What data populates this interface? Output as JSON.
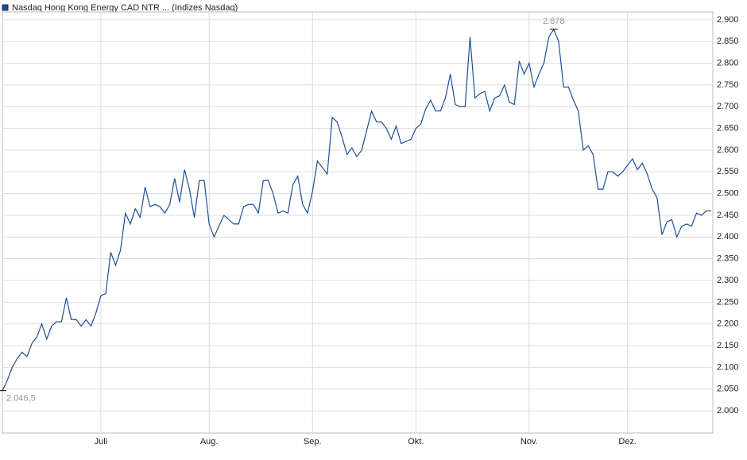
{
  "chart_data": {
    "type": "line",
    "title": "Nasdaq Hong Kong Energy CAD NTR ... (Indizes Nasdaq)",
    "x": [
      0,
      1,
      2,
      3,
      4,
      5,
      6,
      7,
      8,
      9,
      10,
      11,
      12,
      13,
      14,
      15,
      16,
      17,
      18,
      19,
      20,
      21,
      22,
      23,
      24,
      25,
      26,
      27,
      28,
      29,
      30,
      31,
      32,
      33,
      34,
      35,
      36,
      37,
      38,
      39,
      40,
      41,
      42,
      43,
      44,
      45,
      46,
      47,
      48,
      49,
      50,
      51,
      52,
      53,
      54,
      55,
      56,
      57,
      58,
      59,
      60,
      61,
      62,
      63,
      64,
      65,
      66,
      67,
      68,
      69,
      70,
      71,
      72,
      73,
      74,
      75,
      76,
      77,
      78,
      79,
      80,
      81,
      82,
      83,
      84,
      85,
      86,
      87,
      88,
      89,
      90,
      91,
      92,
      93,
      94,
      95,
      96,
      97,
      98,
      99,
      100,
      101,
      102,
      103,
      104,
      105,
      106,
      107,
      108,
      109,
      110,
      111,
      112,
      113,
      114,
      115,
      116,
      117,
      118,
      119,
      120,
      121,
      122,
      123,
      124,
      125,
      126,
      127,
      128,
      129,
      130,
      131,
      132,
      133,
      134,
      135,
      136,
      137,
      138,
      139,
      140,
      141,
      142,
      143,
      144
    ],
    "series": [
      {
        "name": "Nasdaq Hong Kong Energy CAD NTR",
        "color": "#1c4f9a",
        "values": [
          2.0465,
          2.07,
          2.1,
          2.12,
          2.135,
          2.125,
          2.155,
          2.17,
          2.2,
          2.165,
          2.195,
          2.205,
          2.205,
          2.26,
          2.21,
          2.21,
          2.195,
          2.21,
          2.195,
          2.225,
          2.265,
          2.27,
          2.365,
          2.335,
          2.37,
          2.455,
          2.43,
          2.465,
          2.445,
          2.515,
          2.47,
          2.475,
          2.47,
          2.455,
          2.475,
          2.535,
          2.48,
          2.555,
          2.51,
          2.445,
          2.53,
          2.53,
          2.43,
          2.4,
          2.425,
          2.45,
          2.44,
          2.43,
          2.43,
          2.47,
          2.475,
          2.475,
          2.455,
          2.53,
          2.53,
          2.5,
          2.455,
          2.46,
          2.455,
          2.52,
          2.54,
          2.475,
          2.455,
          2.505,
          2.575,
          2.56,
          2.545,
          2.675,
          2.665,
          2.63,
          2.59,
          2.605,
          2.585,
          2.6,
          2.645,
          2.69,
          2.665,
          2.665,
          2.65,
          2.625,
          2.655,
          2.615,
          2.62,
          2.625,
          2.65,
          2.66,
          2.695,
          2.715,
          2.69,
          2.69,
          2.72,
          2.775,
          2.705,
          2.7,
          2.7,
          2.86,
          2.72,
          2.73,
          2.735,
          2.69,
          2.72,
          2.725,
          2.75,
          2.71,
          2.705,
          2.805,
          2.775,
          2.8,
          2.745,
          2.775,
          2.8,
          2.86,
          2.878,
          2.85,
          2.745,
          2.745,
          2.715,
          2.69,
          2.6,
          2.61,
          2.59,
          2.51,
          2.51,
          2.55,
          2.55,
          2.54,
          2.55,
          2.565,
          2.58,
          2.555,
          2.57,
          2.545,
          2.51,
          2.49,
          2.405,
          2.435,
          2.44,
          2.4,
          2.425,
          2.43,
          2.425,
          2.455,
          2.45,
          2.46,
          2.46
        ]
      }
    ],
    "xlim": [
      0,
      144
    ],
    "xticks": [
      {
        "value": 20,
        "label": "Juli"
      },
      {
        "value": 42,
        "label": "Aug."
      },
      {
        "value": 63,
        "label": "Sep."
      },
      {
        "value": 84,
        "label": "Okt."
      },
      {
        "value": 107,
        "label": "Nov."
      },
      {
        "value": 127,
        "label": "Dez."
      }
    ],
    "ylim": [
      1.949,
      2.918
    ],
    "yticks": [
      {
        "value": 2.0,
        "label": "2.000"
      },
      {
        "value": 2.05,
        "label": "2.050"
      },
      {
        "value": 2.1,
        "label": "2.100"
      },
      {
        "value": 2.15,
        "label": "2.150"
      },
      {
        "value": 2.2,
        "label": "2.200"
      },
      {
        "value": 2.25,
        "label": "2.250"
      },
      {
        "value": 2.3,
        "label": "2.300"
      },
      {
        "value": 2.35,
        "label": "2.350"
      },
      {
        "value": 2.4,
        "label": "2.400"
      },
      {
        "value": 2.45,
        "label": "2.450"
      },
      {
        "value": 2.5,
        "label": "2.500"
      },
      {
        "value": 2.55,
        "label": "2.550"
      },
      {
        "value": 2.6,
        "label": "2.600"
      },
      {
        "value": 2.65,
        "label": "2.650"
      },
      {
        "value": 2.7,
        "label": "2.700"
      },
      {
        "value": 2.75,
        "label": "2.750"
      },
      {
        "value": 2.8,
        "label": "2.800"
      },
      {
        "value": 2.85,
        "label": "2.850"
      },
      {
        "value": 2.9,
        "label": "2.900"
      }
    ],
    "grid": true,
    "annotations": [
      {
        "x": 0,
        "value": 2.0465,
        "label": "2.046,5"
      },
      {
        "x": 112,
        "value": 2.878,
        "label": "2.878"
      }
    ]
  }
}
